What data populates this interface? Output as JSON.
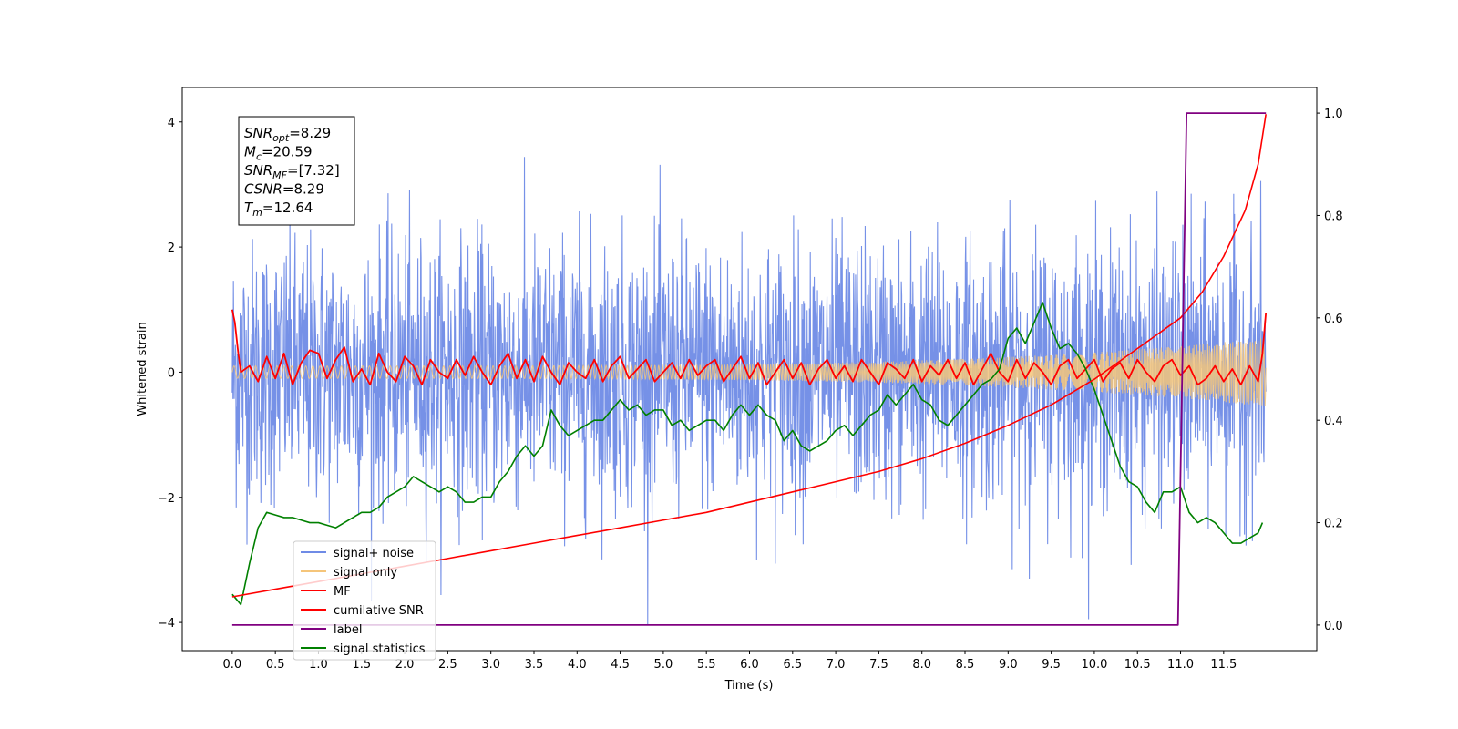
{
  "chart_data": {
    "type": "line",
    "xlabel": "Time (s)",
    "ylabel": "Whitened strain",
    "ylabel_right": "",
    "xlim": [
      -0.58,
      12.58
    ],
    "ylim": [
      -4.45,
      4.55
    ],
    "ylim_right": [
      -0.05,
      1.05
    ],
    "xticks": [
      0.0,
      0.5,
      1.0,
      1.5,
      2.0,
      2.5,
      3.0,
      3.5,
      4.0,
      4.5,
      5.0,
      5.5,
      6.0,
      6.5,
      7.0,
      7.5,
      8.0,
      8.5,
      9.0,
      9.5,
      10.0,
      10.5,
      11.0,
      11.5
    ],
    "xtick_labels": [
      "0.0",
      "0.5",
      "1.0",
      "1.5",
      "2.0",
      "2.5",
      "3.0",
      "3.5",
      "4.0",
      "4.5",
      "5.0",
      "5.5",
      "6.0",
      "6.5",
      "7.0",
      "7.5",
      "8.0",
      "8.5",
      "9.0",
      "9.5",
      "10.0",
      "10.5",
      "11.0",
      "11.5"
    ],
    "yticks_left": [
      -4,
      -2,
      0,
      2,
      4
    ],
    "ytick_left_labels": [
      "−4",
      "−2",
      "0",
      "2",
      "4"
    ],
    "yticks_right": [
      0.0,
      0.2,
      0.4,
      0.6,
      0.8,
      1.0
    ],
    "ytick_right_labels": [
      "0.0",
      "0.2",
      "0.4",
      "0.6",
      "0.8",
      "1.0"
    ],
    "grid": false,
    "legend_position": "lower-left",
    "stats_box": [
      {
        "base": "SNR",
        "sub": "opt",
        "value": "=8.29"
      },
      {
        "base": "M",
        "sub": "c",
        "value": "=20.59"
      },
      {
        "base": "SNR",
        "sub": "MF",
        "value": "=[7.32]"
      },
      {
        "base": "CSNR",
        "sub": "",
        "value": "=8.29"
      },
      {
        "base": "T",
        "sub": "m",
        "value": "=12.64"
      }
    ],
    "series": [
      {
        "name": "signal+ noise",
        "axis": "left",
        "color": "#6f8be6",
        "description_values": {
          "x_range": [
            0.0,
            11.99
          ],
          "approx_min": -3.9,
          "approx_max": 4.15,
          "approx_std": 1.0
        }
      },
      {
        "name": "signal only",
        "axis": "left",
        "color": "#f5c57a",
        "description_values": {
          "x_range": [
            0.0,
            11.99
          ],
          "amplitude_start": 0.1,
          "amplitude_end": 0.55
        }
      },
      {
        "name": "MF",
        "axis": "left",
        "color": "#ff0000",
        "x": [
          0.0,
          0.03,
          0.07,
          0.1,
          0.2,
          0.3,
          0.4,
          0.5,
          0.6,
          0.7,
          0.8,
          0.9,
          1.0,
          1.1,
          1.2,
          1.3,
          1.4,
          1.5,
          1.6,
          1.7,
          1.8,
          1.9,
          2.0,
          2.1,
          2.2,
          2.3,
          2.4,
          2.5,
          2.6,
          2.7,
          2.8,
          2.9,
          3.0,
          3.1,
          3.2,
          3.3,
          3.4,
          3.5,
          3.6,
          3.7,
          3.8,
          3.9,
          4.0,
          4.1,
          4.2,
          4.3,
          4.4,
          4.5,
          4.6,
          4.7,
          4.8,
          4.9,
          5.0,
          5.1,
          5.2,
          5.3,
          5.4,
          5.5,
          5.6,
          5.7,
          5.8,
          5.9,
          6.0,
          6.1,
          6.2,
          6.3,
          6.4,
          6.5,
          6.6,
          6.7,
          6.8,
          6.9,
          7.0,
          7.1,
          7.2,
          7.3,
          7.4,
          7.5,
          7.6,
          7.7,
          7.8,
          7.9,
          8.0,
          8.1,
          8.2,
          8.3,
          8.4,
          8.5,
          8.6,
          8.7,
          8.8,
          8.9,
          9.0,
          9.1,
          9.2,
          9.3,
          9.4,
          9.5,
          9.6,
          9.7,
          9.8,
          9.9,
          10.0,
          10.1,
          10.2,
          10.3,
          10.4,
          10.5,
          10.6,
          10.7,
          10.8,
          10.9,
          11.0,
          11.1,
          11.2,
          11.3,
          11.4,
          11.5,
          11.6,
          11.7,
          11.8,
          11.9,
          11.95,
          11.99
        ],
        "y": [
          1.0,
          0.8,
          0.3,
          0.0,
          0.1,
          -0.15,
          0.25,
          -0.1,
          0.3,
          -0.2,
          0.15,
          0.35,
          0.3,
          -0.1,
          0.2,
          0.4,
          -0.15,
          0.05,
          -0.2,
          0.3,
          0.0,
          -0.15,
          0.25,
          0.1,
          -0.2,
          0.2,
          0.0,
          -0.1,
          0.2,
          -0.05,
          0.25,
          0.0,
          -0.2,
          0.1,
          0.3,
          -0.1,
          0.2,
          -0.15,
          0.25,
          0.0,
          -0.2,
          0.15,
          0.0,
          -0.1,
          0.2,
          -0.15,
          0.1,
          0.25,
          -0.1,
          0.05,
          0.2,
          -0.15,
          0.0,
          0.15,
          -0.1,
          0.2,
          -0.05,
          0.1,
          0.2,
          -0.15,
          0.05,
          0.25,
          -0.1,
          0.15,
          -0.2,
          0.0,
          0.2,
          -0.1,
          0.15,
          -0.2,
          0.05,
          0.2,
          -0.1,
          0.1,
          -0.15,
          0.2,
          0.0,
          -0.2,
          0.15,
          0.05,
          -0.1,
          0.2,
          -0.15,
          0.1,
          -0.05,
          0.2,
          -0.1,
          0.15,
          -0.2,
          0.05,
          0.3,
          0.0,
          -0.15,
          0.2,
          -0.1,
          0.15,
          0.0,
          -0.2,
          0.1,
          0.2,
          -0.1,
          0.05,
          0.2,
          -0.15,
          0.05,
          0.15,
          -0.1,
          0.2,
          0.0,
          -0.15,
          0.1,
          0.2,
          -0.05,
          0.1,
          -0.2,
          -0.1,
          0.1,
          -0.15,
          0.05,
          -0.2,
          0.1,
          -0.15,
          0.3,
          0.95
        ]
      },
      {
        "name": "cumilative SNR",
        "axis": "right",
        "color": "#ff0000",
        "x": [
          0.0,
          0.5,
          1.0,
          1.5,
          2.0,
          2.5,
          3.0,
          3.5,
          4.0,
          4.5,
          5.0,
          5.5,
          6.0,
          6.5,
          7.0,
          7.5,
          8.0,
          8.5,
          9.0,
          9.5,
          10.0,
          10.5,
          11.0,
          11.25,
          11.5,
          11.75,
          11.9,
          11.99
        ],
        "y": [
          0.055,
          0.07,
          0.085,
          0.1,
          0.115,
          0.13,
          0.145,
          0.16,
          0.175,
          0.19,
          0.205,
          0.22,
          0.24,
          0.26,
          0.28,
          0.3,
          0.325,
          0.355,
          0.39,
          0.43,
          0.48,
          0.54,
          0.6,
          0.65,
          0.72,
          0.81,
          0.9,
          0.998
        ]
      },
      {
        "name": "label",
        "axis": "right",
        "color": "#800080",
        "x": [
          0.0,
          10.97,
          11.07,
          11.99
        ],
        "y": [
          0.0,
          0.0,
          1.0,
          1.0
        ]
      },
      {
        "name": "signal statistics",
        "axis": "right",
        "color": "#008000",
        "x": [
          0.0,
          0.1,
          0.2,
          0.3,
          0.4,
          0.5,
          0.6,
          0.7,
          0.8,
          0.9,
          1.0,
          1.1,
          1.2,
          1.3,
          1.4,
          1.5,
          1.6,
          1.7,
          1.8,
          1.9,
          2.0,
          2.1,
          2.2,
          2.3,
          2.4,
          2.5,
          2.6,
          2.7,
          2.8,
          2.9,
          3.0,
          3.1,
          3.2,
          3.3,
          3.4,
          3.5,
          3.6,
          3.7,
          3.8,
          3.9,
          4.0,
          4.1,
          4.2,
          4.3,
          4.4,
          4.5,
          4.6,
          4.7,
          4.8,
          4.9,
          5.0,
          5.1,
          5.2,
          5.3,
          5.4,
          5.5,
          5.6,
          5.7,
          5.8,
          5.9,
          6.0,
          6.1,
          6.2,
          6.3,
          6.4,
          6.5,
          6.6,
          6.7,
          6.8,
          6.9,
          7.0,
          7.1,
          7.2,
          7.3,
          7.4,
          7.5,
          7.6,
          7.7,
          7.8,
          7.9,
          8.0,
          8.1,
          8.2,
          8.3,
          8.4,
          8.5,
          8.6,
          8.7,
          8.8,
          8.9,
          9.0,
          9.1,
          9.2,
          9.3,
          9.4,
          9.5,
          9.6,
          9.7,
          9.8,
          9.9,
          10.0,
          10.1,
          10.2,
          10.3,
          10.4,
          10.5,
          10.6,
          10.7,
          10.8,
          10.9,
          11.0,
          11.1,
          11.2,
          11.3,
          11.4,
          11.5,
          11.6,
          11.7,
          11.8,
          11.9,
          11.95
        ],
        "y": [
          0.06,
          0.04,
          0.12,
          0.19,
          0.22,
          0.215,
          0.21,
          0.21,
          0.205,
          0.2,
          0.2,
          0.195,
          0.19,
          0.2,
          0.21,
          0.22,
          0.22,
          0.23,
          0.25,
          0.26,
          0.27,
          0.29,
          0.28,
          0.27,
          0.26,
          0.27,
          0.26,
          0.24,
          0.24,
          0.25,
          0.25,
          0.28,
          0.3,
          0.33,
          0.35,
          0.33,
          0.35,
          0.42,
          0.39,
          0.37,
          0.38,
          0.39,
          0.4,
          0.4,
          0.42,
          0.44,
          0.42,
          0.43,
          0.41,
          0.42,
          0.42,
          0.39,
          0.4,
          0.38,
          0.39,
          0.4,
          0.4,
          0.38,
          0.41,
          0.43,
          0.41,
          0.43,
          0.41,
          0.4,
          0.36,
          0.38,
          0.35,
          0.34,
          0.35,
          0.36,
          0.38,
          0.39,
          0.37,
          0.39,
          0.41,
          0.42,
          0.45,
          0.43,
          0.45,
          0.47,
          0.44,
          0.43,
          0.4,
          0.39,
          0.41,
          0.43,
          0.45,
          0.47,
          0.48,
          0.5,
          0.56,
          0.58,
          0.55,
          0.59,
          0.63,
          0.58,
          0.54,
          0.55,
          0.53,
          0.5,
          0.46,
          0.41,
          0.36,
          0.31,
          0.28,
          0.27,
          0.24,
          0.22,
          0.26,
          0.26,
          0.27,
          0.22,
          0.2,
          0.21,
          0.2,
          0.18,
          0.16,
          0.16,
          0.17,
          0.18,
          0.2
        ]
      }
    ]
  }
}
